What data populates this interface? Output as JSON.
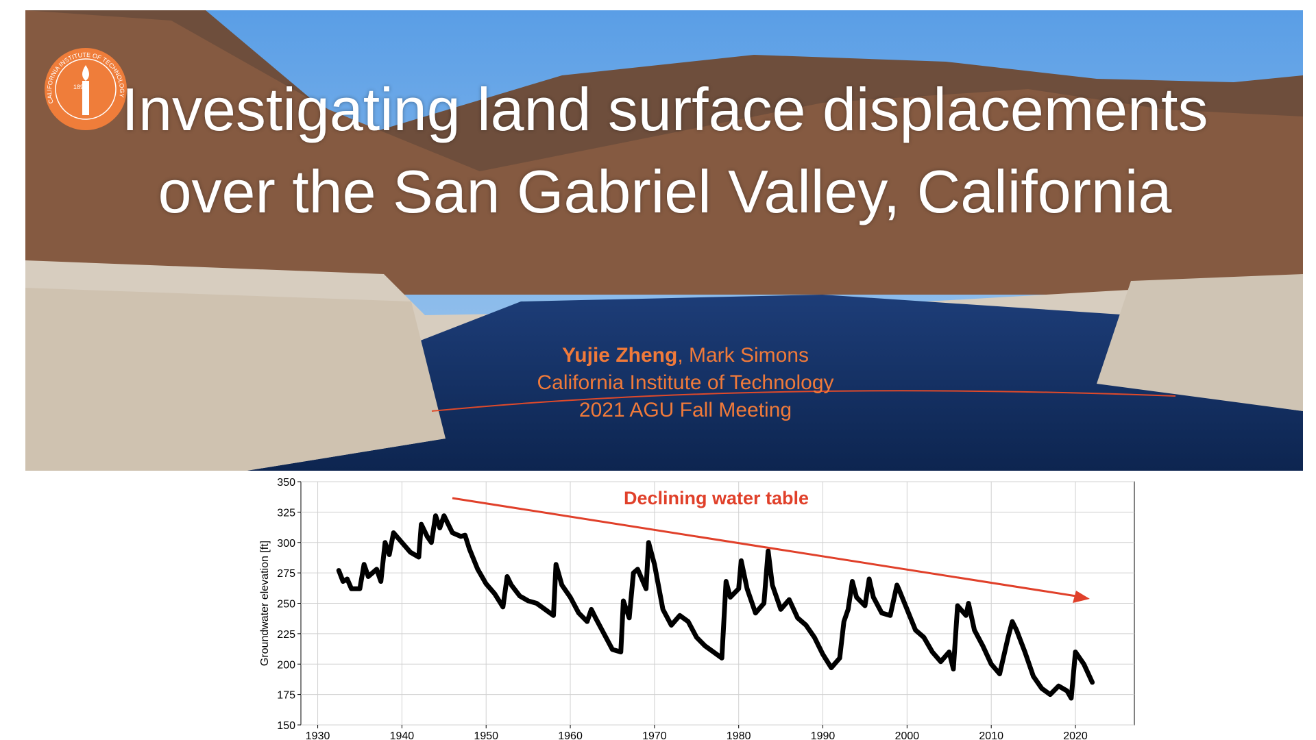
{
  "slide": {
    "title": "Investigating land surface displacements over the San Gabriel Valley, California",
    "authors": [
      "Yujie Zheng",
      ", Mark Simons"
    ],
    "affiliation": "California Institute of Technology",
    "meeting": "2021 AGU Fall Meeting",
    "logo": {
      "name": "CALIFORNIA INSTITUTE OF TECHNOLOGY",
      "year": "1891"
    }
  },
  "chart_data": {
    "type": "line",
    "y_label": "Groundwater elevation [ft]",
    "annotation": "Declining water table",
    "grid": true,
    "xlim": [
      1928,
      2027
    ],
    "xticks": [
      1930,
      1940,
      1950,
      1960,
      1970,
      1980,
      1990,
      2000,
      2010,
      2020
    ],
    "ylim": [
      150,
      350
    ],
    "yticks": [
      150,
      175,
      200,
      225,
      250,
      275,
      300,
      325,
      350
    ],
    "series": [
      {
        "color": "#000000",
        "x": [
          1932.5,
          1933,
          1933.5,
          1934,
          1935,
          1935.5,
          1936,
          1937,
          1937.5,
          1938,
          1938.5,
          1939,
          1940,
          1941,
          1942,
          1942.3,
          1943,
          1943.5,
          1944,
          1944.5,
          1945,
          1946,
          1947,
          1947.5,
          1948,
          1949,
          1950,
          1951,
          1952,
          1952.5,
          1953,
          1954,
          1955,
          1956,
          1957,
          1958,
          1958.3,
          1959,
          1960,
          1961,
          1962,
          1962.5,
          1963,
          1964,
          1965,
          1966,
          1966.3,
          1967,
          1967.5,
          1968,
          1969,
          1969.3,
          1970,
          1971,
          1972,
          1973,
          1974,
          1975,
          1976,
          1977,
          1978,
          1978.5,
          1979,
          1980,
          1980.3,
          1981,
          1982,
          1983,
          1983.5,
          1984,
          1985,
          1986,
          1987,
          1988,
          1989,
          1990,
          1991,
          1992,
          1992.5,
          1993,
          1993.5,
          1994,
          1995,
          1995.5,
          1996,
          1997,
          1998,
          1998.8,
          1999,
          2000,
          2001,
          2002,
          2003,
          2004,
          2005,
          2005.5,
          2006,
          2007,
          2007.3,
          2008,
          2009,
          2010,
          2011,
          2012,
          2012.5,
          2013,
          2014,
          2015,
          2016,
          2017,
          2018,
          2019,
          2019.5,
          2020,
          2021,
          2022
        ],
        "values": [
          277,
          268,
          270,
          262,
          262,
          282,
          272,
          278,
          268,
          300,
          290,
          308,
          300,
          292,
          288,
          315,
          305,
          300,
          322,
          312,
          322,
          308,
          305,
          306,
          295,
          278,
          266,
          258,
          247,
          272,
          265,
          256,
          252,
          250,
          245,
          240,
          282,
          265,
          255,
          242,
          235,
          245,
          238,
          225,
          212,
          210,
          252,
          238,
          275,
          278,
          262,
          300,
          282,
          245,
          232,
          240,
          235,
          222,
          215,
          210,
          205,
          268,
          255,
          262,
          285,
          262,
          242,
          250,
          293,
          265,
          245,
          253,
          238,
          232,
          222,
          208,
          197,
          205,
          235,
          245,
          268,
          255,
          248,
          270,
          255,
          242,
          240,
          265,
          262,
          245,
          228,
          222,
          210,
          202,
          210,
          196,
          248,
          240,
          250,
          228,
          215,
          200,
          192,
          222,
          235,
          228,
          210,
          190,
          180,
          175,
          182,
          178,
          172,
          210,
          200,
          185
        ]
      }
    ]
  }
}
